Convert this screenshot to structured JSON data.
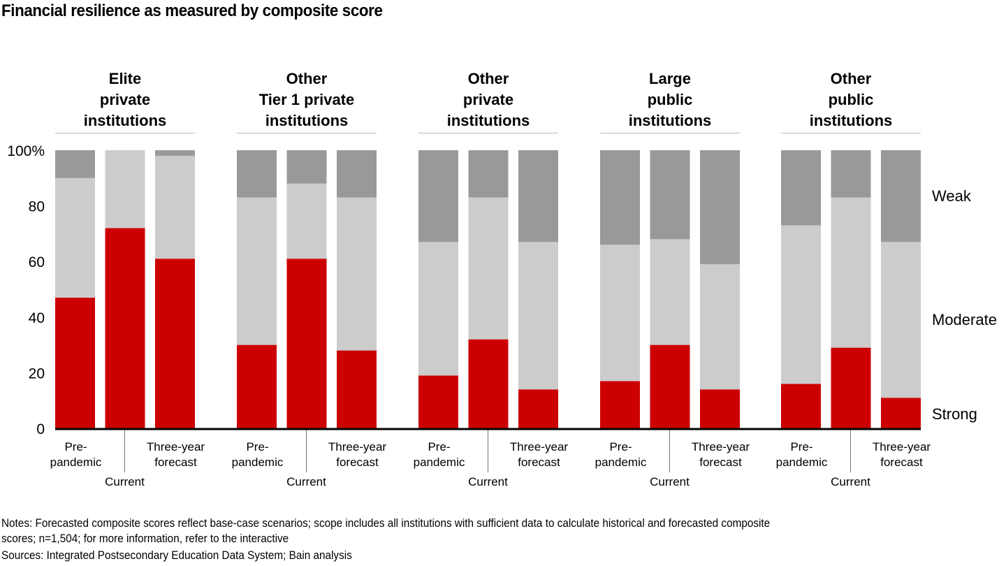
{
  "chart_data": {
    "type": "bar",
    "stacked": true,
    "title": "Financial resilience as measured by composite score",
    "ylabel": "",
    "xlabel": "",
    "ylim": [
      0,
      100
    ],
    "yticks": [
      "0",
      "20",
      "40",
      "60",
      "80",
      "100%"
    ],
    "ytick_values": [
      0,
      20,
      40,
      60,
      80,
      100
    ],
    "grid": false,
    "legend_position": "right",
    "categories": [
      "Pre-pandemic",
      "Current",
      "Three-year forecast"
    ],
    "category_labels": [
      {
        "lines": [
          "Pre-",
          "pandemic"
        ]
      },
      {
        "lines": [
          "Current"
        ]
      },
      {
        "lines": [
          "Three-year",
          "forecast"
        ]
      }
    ],
    "series_names": [
      "Strong",
      "Moderate",
      "Weak"
    ],
    "colors": {
      "Strong": "#cc0000",
      "Moderate": "#cccccc",
      "Weak": "#999999"
    },
    "legend": [
      {
        "name": "Weak",
        "label": "Weak"
      },
      {
        "name": "Moderate",
        "label": "Moderate"
      },
      {
        "name": "Strong",
        "label": "Strong"
      }
    ],
    "groups": [
      {
        "name": "Elite private institutions",
        "title_lines": [
          "Elite",
          "private",
          "institutions"
        ],
        "series": [
          {
            "name": "Strong",
            "values": [
              47,
              72,
              61
            ]
          },
          {
            "name": "Moderate",
            "values": [
              43,
              28,
              37
            ]
          },
          {
            "name": "Weak",
            "values": [
              10,
              0,
              2
            ]
          }
        ]
      },
      {
        "name": "Other Tier 1 private institutions",
        "title_lines": [
          "Other",
          "Tier 1 private",
          "institutions"
        ],
        "series": [
          {
            "name": "Strong",
            "values": [
              30,
              61,
              28
            ]
          },
          {
            "name": "Moderate",
            "values": [
              53,
              27,
              55
            ]
          },
          {
            "name": "Weak",
            "values": [
              17,
              12,
              17
            ]
          }
        ]
      },
      {
        "name": "Other private institutions",
        "title_lines": [
          "Other",
          "private",
          "institutions"
        ],
        "series": [
          {
            "name": "Strong",
            "values": [
              19,
              32,
              14
            ]
          },
          {
            "name": "Moderate",
            "values": [
              48,
              51,
              53
            ]
          },
          {
            "name": "Weak",
            "values": [
              33,
              17,
              33
            ]
          }
        ]
      },
      {
        "name": "Large public institutions",
        "title_lines": [
          "Large",
          "public",
          "institutions"
        ],
        "series": [
          {
            "name": "Strong",
            "values": [
              17,
              30,
              14
            ]
          },
          {
            "name": "Moderate",
            "values": [
              49,
              38,
              45
            ]
          },
          {
            "name": "Weak",
            "values": [
              34,
              32,
              41
            ]
          }
        ]
      },
      {
        "name": "Other public institutions",
        "title_lines": [
          "Other",
          "public",
          "institutions"
        ],
        "series": [
          {
            "name": "Strong",
            "values": [
              16,
              29,
              11
            ]
          },
          {
            "name": "Moderate",
            "values": [
              57,
              54,
              56
            ]
          },
          {
            "name": "Weak",
            "values": [
              27,
              17,
              33
            ]
          }
        ]
      }
    ]
  },
  "footer": {
    "notes_line1": "Notes: Forecasted composite scores reflect base-case scenarios; scope includes all institutions with sufficient data to calculate historical and forecasted composite",
    "notes_line2": "scores; n=1,504; for more information, refer to the interactive",
    "sources": "Sources: Integrated Postsecondary Education Data System; Bain analysis"
  }
}
